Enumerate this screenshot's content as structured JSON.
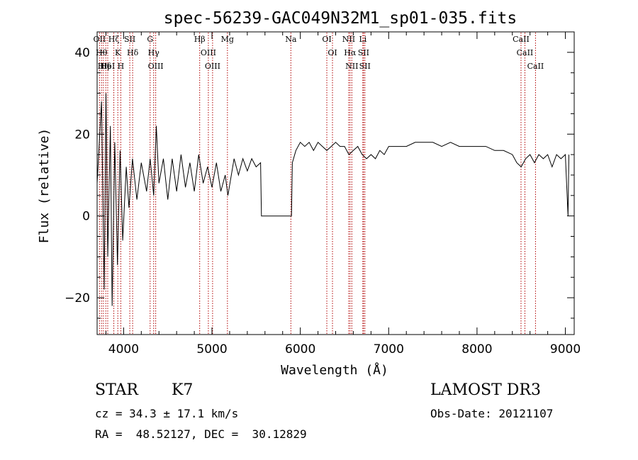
{
  "chart_data": {
    "type": "line",
    "title": "spec-56239-GAC049N32M1_sp01-035.fits",
    "xlabel": "Wavelength (Å)",
    "ylabel": "Flux (relative)",
    "xlim": [
      3700,
      9100
    ],
    "ylim": [
      -29,
      45
    ],
    "xticks": [
      4000,
      5000,
      6000,
      7000,
      8000,
      9000
    ],
    "yticks": [
      -20,
      0,
      20,
      40
    ],
    "x_tick_labels": [
      "4000",
      "5000",
      "6000",
      "7000",
      "8000",
      "9000"
    ],
    "y_tick_labels": [
      "−20",
      "0",
      "20",
      "40"
    ],
    "spectrum_points": [
      [
        3700,
        8
      ],
      [
        3750,
        28
      ],
      [
        3780,
        -18
      ],
      [
        3800,
        30
      ],
      [
        3820,
        -10
      ],
      [
        3850,
        22
      ],
      [
        3870,
        -22
      ],
      [
        3900,
        18
      ],
      [
        3930,
        -12
      ],
      [
        3960,
        16
      ],
      [
        3990,
        -6
      ],
      [
        4030,
        12
      ],
      [
        4060,
        2
      ],
      [
        4100,
        14
      ],
      [
        4150,
        4
      ],
      [
        4200,
        13
      ],
      [
        4260,
        6
      ],
      [
        4300,
        14
      ],
      [
        4340,
        5
      ],
      [
        4370,
        22
      ],
      [
        4400,
        8
      ],
      [
        4450,
        14
      ],
      [
        4500,
        4
      ],
      [
        4550,
        14
      ],
      [
        4600,
        6
      ],
      [
        4650,
        15
      ],
      [
        4700,
        7
      ],
      [
        4750,
        13
      ],
      [
        4800,
        6
      ],
      [
        4850,
        15
      ],
      [
        4900,
        8
      ],
      [
        4950,
        12
      ],
      [
        5000,
        7
      ],
      [
        5050,
        13
      ],
      [
        5100,
        6
      ],
      [
        5150,
        10
      ],
      [
        5180,
        5
      ],
      [
        5250,
        14
      ],
      [
        5300,
        10
      ],
      [
        5350,
        14
      ],
      [
        5400,
        11
      ],
      [
        5450,
        14
      ],
      [
        5500,
        12
      ],
      [
        5550,
        13
      ],
      [
        5560,
        0
      ],
      [
        5900,
        0
      ],
      [
        5910,
        13
      ],
      [
        5950,
        16
      ],
      [
        6000,
        18
      ],
      [
        6050,
        17
      ],
      [
        6100,
        18
      ],
      [
        6150,
        16
      ],
      [
        6200,
        18
      ],
      [
        6250,
        17
      ],
      [
        6300,
        16
      ],
      [
        6350,
        17
      ],
      [
        6400,
        18
      ],
      [
        6450,
        17
      ],
      [
        6500,
        17
      ],
      [
        6550,
        15
      ],
      [
        6600,
        16
      ],
      [
        6650,
        17
      ],
      [
        6700,
        15
      ],
      [
        6750,
        14
      ],
      [
        6800,
        15
      ],
      [
        6850,
        14
      ],
      [
        6900,
        16
      ],
      [
        6950,
        15
      ],
      [
        7000,
        17
      ],
      [
        7100,
        17
      ],
      [
        7200,
        17
      ],
      [
        7300,
        18
      ],
      [
        7400,
        18
      ],
      [
        7500,
        18
      ],
      [
        7600,
        17
      ],
      [
        7700,
        18
      ],
      [
        7800,
        17
      ],
      [
        7900,
        17
      ],
      [
        8000,
        17
      ],
      [
        8100,
        17
      ],
      [
        8200,
        16
      ],
      [
        8300,
        16
      ],
      [
        8400,
        15
      ],
      [
        8450,
        13
      ],
      [
        8500,
        12
      ],
      [
        8550,
        14
      ],
      [
        8600,
        15
      ],
      [
        8650,
        13
      ],
      [
        8700,
        15
      ],
      [
        8750,
        14
      ],
      [
        8800,
        15
      ],
      [
        8850,
        12
      ],
      [
        8900,
        15
      ],
      [
        8950,
        14
      ],
      [
        9000,
        15
      ],
      [
        9030,
        0
      ],
      [
        9040,
        15
      ]
    ],
    "line_markers": [
      {
        "wavelength": 3727,
        "label": "OII"
      },
      {
        "wavelength": 3750,
        "label": "Hθ"
      },
      {
        "wavelength": 3771,
        "label": "Hη"
      },
      {
        "wavelength": 3798,
        "label": "Hδ"
      },
      {
        "wavelength": 3820,
        "label": "HeI"
      },
      {
        "wavelength": 3889,
        "label": "Hζ"
      },
      {
        "wavelength": 3934,
        "label": "K"
      },
      {
        "wavelength": 3968,
        "label": "H"
      },
      {
        "wavelength": 4070,
        "label": "SII"
      },
      {
        "wavelength": 4102,
        "label": "Hδ"
      },
      {
        "wavelength": 4300,
        "label": "G"
      },
      {
        "wavelength": 4340,
        "label": "Hγ"
      },
      {
        "wavelength": 4363,
        "label": "OIII"
      },
      {
        "wavelength": 4861,
        "label": "Hβ"
      },
      {
        "wavelength": 4959,
        "label": "OIII"
      },
      {
        "wavelength": 5007,
        "label": "OIII"
      },
      {
        "wavelength": 5175,
        "label": "Mg"
      },
      {
        "wavelength": 5893,
        "label": "Na"
      },
      {
        "wavelength": 6300,
        "label": "OI"
      },
      {
        "wavelength": 6364,
        "label": "OI"
      },
      {
        "wavelength": 6548,
        "label": "NII"
      },
      {
        "wavelength": 6563,
        "label": "Hα"
      },
      {
        "wavelength": 6583,
        "label": "NII"
      },
      {
        "wavelength": 6708,
        "label": "Li"
      },
      {
        "wavelength": 6716,
        "label": "SII"
      },
      {
        "wavelength": 6731,
        "label": "SII"
      },
      {
        "wavelength": 8498,
        "label": "CaII"
      },
      {
        "wavelength": 8542,
        "label": "CaII"
      },
      {
        "wavelength": 8662,
        "label": "CaII"
      }
    ]
  },
  "info": {
    "class_label": "STAR",
    "subclass": "K7",
    "survey": "LAMOST DR3",
    "cz": "cz = 34.3 ± 17.1 km/s",
    "obs_date": "Obs-Date: 20121107",
    "coords": "RA =  48.52127, DEC =  30.12829"
  },
  "colors": {
    "axis": "#000000",
    "spectrum": "#000000",
    "marker_line": "#b00000"
  }
}
